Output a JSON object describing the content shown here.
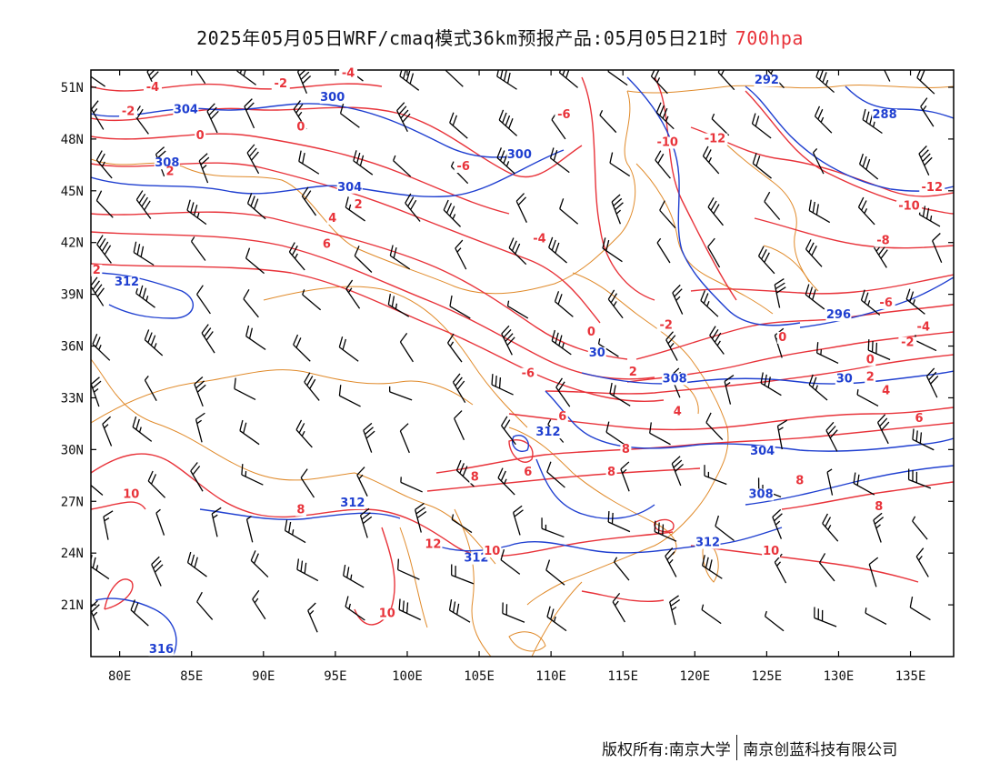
{
  "title": {
    "main": "2025年05月05日WRF/cmaq模式36km预报产品:05月05日21时",
    "level": "700hpa"
  },
  "colors": {
    "height_contour": "#1f3fd0",
    "temp_contour": "#e8333a",
    "border": "#e08a2a",
    "wind_barb": "#000000"
  },
  "axes": {
    "lon_labels": [
      "80E",
      "85E",
      "90E",
      "95E",
      "100E",
      "105E",
      "110E",
      "115E",
      "120E",
      "125E",
      "130E",
      "135E"
    ],
    "lat_labels": [
      "51N",
      "48N",
      "45N",
      "42N",
      "39N",
      "36N",
      "33N",
      "30N",
      "27N",
      "24N",
      "21N"
    ],
    "lon_range": [
      78,
      138
    ],
    "lat_range": [
      18,
      52
    ]
  },
  "height_labels": [
    {
      "text": "304",
      "lon": 84.6,
      "lat": 49.5
    },
    {
      "text": "300",
      "lon": 94.8,
      "lat": 50.2
    },
    {
      "text": "300",
      "lon": 107.8,
      "lat": 46.9
    },
    {
      "text": "292",
      "lon": 125.0,
      "lat": 51.2
    },
    {
      "text": "288",
      "lon": 133.2,
      "lat": 49.2
    },
    {
      "text": "308",
      "lon": 83.3,
      "lat": 46.4
    },
    {
      "text": "304",
      "lon": 96.0,
      "lat": 45.0
    },
    {
      "text": "312",
      "lon": 80.5,
      "lat": 39.5
    },
    {
      "text": "296",
      "lon": 130.0,
      "lat": 37.6
    },
    {
      "text": "30",
      "lon": 113.2,
      "lat": 35.4
    },
    {
      "text": "308",
      "lon": 118.6,
      "lat": 33.9
    },
    {
      "text": "30",
      "lon": 130.4,
      "lat": 33.9
    },
    {
      "text": "312",
      "lon": 109.8,
      "lat": 30.8
    },
    {
      "text": "304",
      "lon": 124.7,
      "lat": 29.7
    },
    {
      "text": "308",
      "lon": 124.6,
      "lat": 27.2
    },
    {
      "text": "312",
      "lon": 96.2,
      "lat": 26.7
    },
    {
      "text": "312",
      "lon": 120.9,
      "lat": 24.4
    },
    {
      "text": "312",
      "lon": 104.8,
      "lat": 23.5
    },
    {
      "text": "316",
      "lon": 82.9,
      "lat": 18.2
    }
  ],
  "temp_labels": [
    {
      "text": "-4",
      "lon": 82.3,
      "lat": 50.8
    },
    {
      "text": "-2",
      "lon": 80.6,
      "lat": 49.4
    },
    {
      "text": "-2",
      "lon": 91.2,
      "lat": 51.0
    },
    {
      "text": "-4",
      "lon": 95.9,
      "lat": 51.6
    },
    {
      "text": "0",
      "lon": 85.6,
      "lat": 48.0
    },
    {
      "text": "0",
      "lon": 92.6,
      "lat": 48.5
    },
    {
      "text": "2",
      "lon": 83.5,
      "lat": 45.9
    },
    {
      "text": "-6",
      "lon": 110.9,
      "lat": 49.2
    },
    {
      "text": "-6",
      "lon": 103.9,
      "lat": 46.2
    },
    {
      "text": "-10",
      "lon": 118.1,
      "lat": 47.6
    },
    {
      "text": "-12",
      "lon": 121.4,
      "lat": 47.8
    },
    {
      "text": "-12",
      "lon": 136.5,
      "lat": 45.0
    },
    {
      "text": "-10",
      "lon": 134.9,
      "lat": 43.9
    },
    {
      "text": "2",
      "lon": 96.6,
      "lat": 44.0
    },
    {
      "text": "4",
      "lon": 94.8,
      "lat": 43.2
    },
    {
      "text": "-4",
      "lon": 109.2,
      "lat": 42.0
    },
    {
      "text": "-8",
      "lon": 133.1,
      "lat": 41.9
    },
    {
      "text": "6",
      "lon": 94.4,
      "lat": 41.7
    },
    {
      "text": "2",
      "lon": 78.4,
      "lat": 40.2
    },
    {
      "text": "-6",
      "lon": 133.3,
      "lat": 38.3
    },
    {
      "text": "-2",
      "lon": 118.0,
      "lat": 37.0
    },
    {
      "text": "-4",
      "lon": 135.9,
      "lat": 36.9
    },
    {
      "text": "0",
      "lon": 112.8,
      "lat": 36.6
    },
    {
      "text": "0",
      "lon": 126.1,
      "lat": 36.3
    },
    {
      "text": "-2",
      "lon": 134.8,
      "lat": 36.0
    },
    {
      "text": "0",
      "lon": 132.2,
      "lat": 35.0
    },
    {
      "text": "2",
      "lon": 115.7,
      "lat": 34.3
    },
    {
      "text": "-6",
      "lon": 108.4,
      "lat": 34.2
    },
    {
      "text": "2",
      "lon": 132.2,
      "lat": 34.0
    },
    {
      "text": "4",
      "lon": 133.3,
      "lat": 33.2
    },
    {
      "text": "4",
      "lon": 118.8,
      "lat": 32.0
    },
    {
      "text": "6",
      "lon": 110.8,
      "lat": 31.7
    },
    {
      "text": "6",
      "lon": 135.6,
      "lat": 31.6
    },
    {
      "text": "8",
      "lon": 115.2,
      "lat": 29.8
    },
    {
      "text": "8",
      "lon": 127.3,
      "lat": 28.0
    },
    {
      "text": "6",
      "lon": 108.4,
      "lat": 28.5
    },
    {
      "text": "8",
      "lon": 104.7,
      "lat": 28.2
    },
    {
      "text": "8",
      "lon": 114.2,
      "lat": 28.5
    },
    {
      "text": "10",
      "lon": 80.8,
      "lat": 27.2
    },
    {
      "text": "8",
      "lon": 132.8,
      "lat": 26.5
    },
    {
      "text": "8",
      "lon": 92.6,
      "lat": 26.3
    },
    {
      "text": "12",
      "lon": 101.8,
      "lat": 24.3
    },
    {
      "text": "10",
      "lon": 105.9,
      "lat": 23.9
    },
    {
      "text": "10",
      "lon": 125.3,
      "lat": 23.9
    },
    {
      "text": "10",
      "lon": 98.6,
      "lat": 20.3
    }
  ],
  "footer": {
    "copyright": "版权所有:南京大学",
    "company": "南京创蓝科技有限公司"
  }
}
